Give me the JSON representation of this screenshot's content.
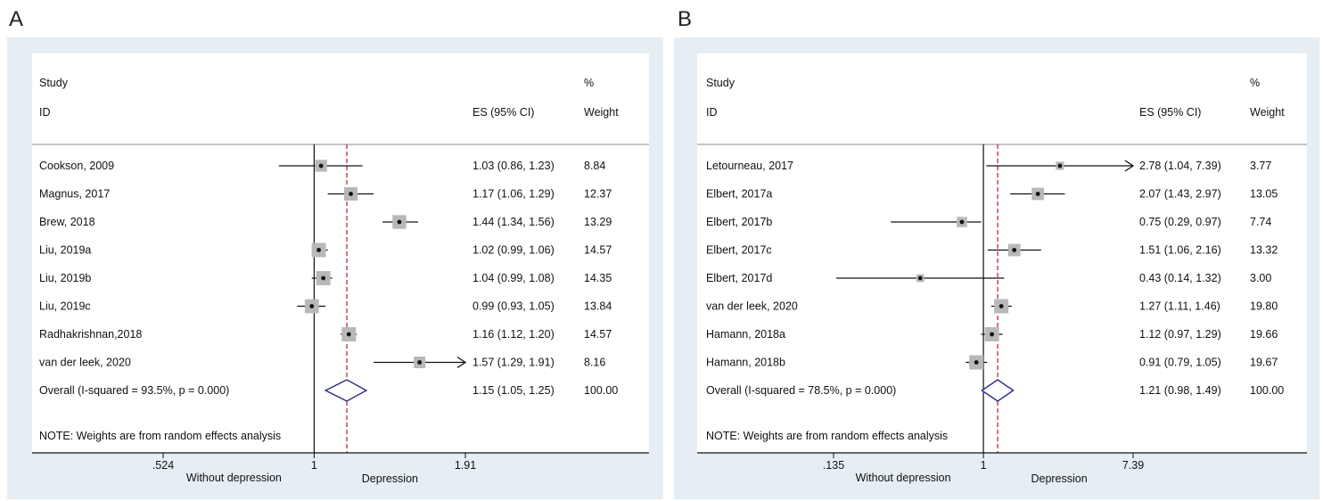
{
  "panels": [
    {
      "letter": "A",
      "header": {
        "study": "Study",
        "id": "ID",
        "es": "ES (95% CI)",
        "pct": "%",
        "weight": "Weight"
      },
      "note": "NOTE: Weights are from random effects analysis",
      "axis": {
        "ticks": [
          ".524",
          "1",
          "1.91"
        ],
        "left_label": "Without depression",
        "right_label": "Depression"
      },
      "colors": {
        "diamond": "#2b2b8f",
        "dashed": "#b02020",
        "box": "#b8b8b8"
      },
      "chart_data": {
        "type": "forest",
        "log_scale": true,
        "xlim": [
          0.524,
          1.91
        ],
        "pooled_line": 1.15,
        "studies": [
          {
            "label": "Cookson, 2009",
            "es": 1.03,
            "lo": 0.86,
            "hi": 1.23,
            "weight": 8.84,
            "es_text": "1.03 (0.86, 1.23)",
            "weight_text": "8.84"
          },
          {
            "label": "Magnus, 2017",
            "es": 1.17,
            "lo": 1.06,
            "hi": 1.29,
            "weight": 12.37,
            "es_text": "1.17 (1.06, 1.29)",
            "weight_text": "12.37"
          },
          {
            "label": "Brew, 2018",
            "es": 1.44,
            "lo": 1.34,
            "hi": 1.56,
            "weight": 13.29,
            "es_text": "1.44 (1.34, 1.56)",
            "weight_text": "13.29"
          },
          {
            "label": "Liu, 2019a",
            "es": 1.02,
            "lo": 0.99,
            "hi": 1.06,
            "weight": 14.57,
            "es_text": "1.02 (0.99, 1.06)",
            "weight_text": "14.57"
          },
          {
            "label": "Liu, 2019b",
            "es": 1.04,
            "lo": 0.99,
            "hi": 1.08,
            "weight": 14.35,
            "es_text": "1.04 (0.99, 1.08)",
            "weight_text": "14.35"
          },
          {
            "label": "Liu, 2019c",
            "es": 0.99,
            "lo": 0.93,
            "hi": 1.05,
            "weight": 13.84,
            "es_text": "0.99 (0.93, 1.05)",
            "weight_text": "13.84"
          },
          {
            "label": "Radhakrishnan,2018",
            "es": 1.16,
            "lo": 1.12,
            "hi": 1.2,
            "weight": 14.57,
            "es_text": "1.16 (1.12, 1.20)",
            "weight_text": "14.57"
          },
          {
            "label": "van der leek, 2020",
            "es": 1.57,
            "lo": 1.29,
            "hi": 1.91,
            "weight": 8.16,
            "es_text": "1.57 (1.29, 1.91)",
            "weight_text": "8.16",
            "arrow": true
          }
        ],
        "overall": {
          "label": "Overall  (I-squared = 93.5%, p = 0.000)",
          "es": 1.15,
          "lo": 1.05,
          "hi": 1.25,
          "es_text": "1.15 (1.05, 1.25)",
          "weight_text": "100.00"
        }
      }
    },
    {
      "letter": "B",
      "header": {
        "study": "Study",
        "id": "ID",
        "es": "ES (95% CI)",
        "pct": "%",
        "weight": "Weight"
      },
      "note": "NOTE: Weights are from random effects analysis",
      "axis": {
        "ticks": [
          ".135",
          "1",
          "7.39"
        ],
        "left_label": "Without depression",
        "right_label": "Depression"
      },
      "colors": {
        "diamond": "#2b2b8f",
        "dashed": "#b02020",
        "box": "#b8b8b8"
      },
      "chart_data": {
        "type": "forest",
        "log_scale": true,
        "xlim": [
          0.135,
          7.39
        ],
        "pooled_line": 1.21,
        "studies": [
          {
            "label": "Letourneau, 2017",
            "es": 2.78,
            "lo": 1.04,
            "hi": 7.39,
            "weight": 3.77,
            "es_text": "2.78 (1.04, 7.39)",
            "weight_text": "3.77",
            "arrow": true
          },
          {
            "label": "Elbert, 2017a",
            "es": 2.07,
            "lo": 1.43,
            "hi": 2.97,
            "weight": 13.05,
            "es_text": "2.07 (1.43, 2.97)",
            "weight_text": "13.05"
          },
          {
            "label": "Elbert, 2017b",
            "es": 0.75,
            "lo": 0.29,
            "hi": 0.97,
            "weight": 7.74,
            "es_text": "0.75 (0.29, 0.97)",
            "weight_text": "7.74"
          },
          {
            "label": "Elbert, 2017c",
            "es": 1.51,
            "lo": 1.06,
            "hi": 2.16,
            "weight": 13.32,
            "es_text": "1.51 (1.06, 2.16)",
            "weight_text": "13.32"
          },
          {
            "label": "Elbert, 2017d",
            "es": 0.43,
            "lo": 0.14,
            "hi": 1.32,
            "weight": 3.0,
            "es_text": "0.43 (0.14, 1.32)",
            "weight_text": "3.00"
          },
          {
            "label": "van der leek, 2020",
            "es": 1.27,
            "lo": 1.11,
            "hi": 1.46,
            "weight": 19.8,
            "es_text": "1.27 (1.11, 1.46)",
            "weight_text": "19.80"
          },
          {
            "label": "Hamann, 2018a",
            "es": 1.12,
            "lo": 0.97,
            "hi": 1.29,
            "weight": 19.66,
            "es_text": "1.12 (0.97, 1.29)",
            "weight_text": "19.66"
          },
          {
            "label": "Hamann, 2018b",
            "es": 0.91,
            "lo": 0.79,
            "hi": 1.05,
            "weight": 19.67,
            "es_text": "0.91 (0.79, 1.05)",
            "weight_text": "19.67"
          }
        ],
        "overall": {
          "label": "Overall  (I-squared = 78.5%, p = 0.000)",
          "es": 1.21,
          "lo": 0.98,
          "hi": 1.49,
          "es_text": "1.21 (0.98, 1.49)",
          "weight_text": "100.00"
        }
      }
    }
  ]
}
